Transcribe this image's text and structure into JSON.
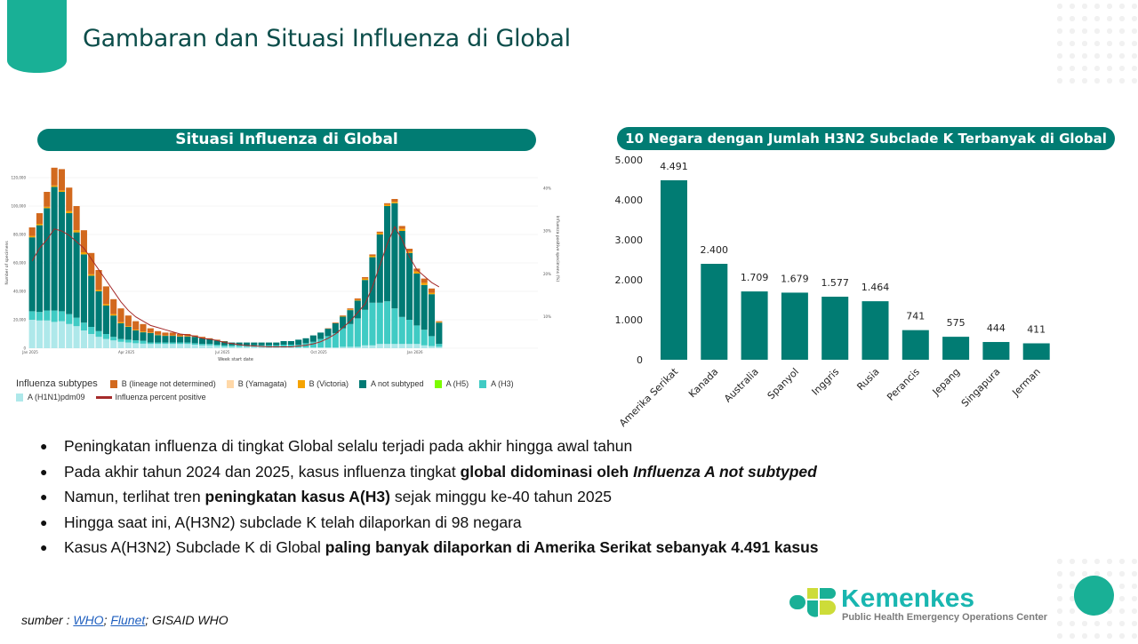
{
  "header": {
    "title": "Gambaran dan Situasi Influenza di Global"
  },
  "left_panel": {
    "title": "Situasi Influenza di Global"
  },
  "right_panel": {
    "title": "10 Negara dengan Jumlah H3N2 Subclade K Terbanyak di Global"
  },
  "colors": {
    "teal": "#017c73",
    "accent": "#19b096",
    "b_nd": "#d2691e",
    "b_yam": "#ffd8a8",
    "b_vic": "#f5a300",
    "a_not": "#007a74",
    "a_h5": "#7cfc00",
    "a_h3": "#40cbc4",
    "a_h1": "#aee8ea",
    "pct": "#a52a2a"
  },
  "chart_data": [
    {
      "type": "bar",
      "stacked": true,
      "title": "Situasi Influenza di Global",
      "xlabel": "Week start date",
      "ylabel": "Number of specimens",
      "y2label": "Influenza positive specimens (%)",
      "ylim": [
        0,
        130000
      ],
      "y_ticks": [
        "0",
        "20,000",
        "40,000",
        "60,000",
        "80,000",
        "100,000",
        "120,000"
      ],
      "y2_ticks": [
        "10%",
        "20%",
        "30%",
        "40%"
      ],
      "x_ticks": [
        "Jan 2025",
        "Apr 2025",
        "Jul 2025",
        "Oct 2025",
        "Jan 2026"
      ],
      "legend_title": "Influenza subtypes",
      "legend_position": "bottom",
      "units": "thousands of specimens",
      "series": [
        {
          "name": "A (H1N1)pdm09",
          "key": "a_h1",
          "values": [
            20,
            19.5,
            19.5,
            18.5,
            19,
            17,
            15.5,
            12.5,
            10,
            8,
            6.5,
            5.5,
            4.5,
            4,
            3.5,
            3.2,
            3,
            3,
            3,
            3,
            3,
            3,
            2.5,
            2,
            2,
            1.5,
            1,
            1,
            1,
            1,
            1,
            1,
            1,
            1,
            1,
            1,
            0.5,
            0.5,
            0.5,
            0.5,
            0.5,
            0.5,
            1,
            1,
            1,
            2,
            2,
            3,
            3,
            3,
            3,
            3,
            3,
            2,
            1.5,
            1
          ]
        },
        {
          "name": "A (H3)",
          "key": "a_h3",
          "values": [
            6,
            6,
            7,
            8,
            7,
            7,
            6,
            5.5,
            5,
            4,
            3.5,
            2.5,
            2,
            2,
            2,
            2,
            1,
            1,
            1,
            1,
            1,
            1,
            1,
            1,
            1,
            1,
            1,
            1,
            1,
            1,
            1,
            1,
            1,
            1,
            1.5,
            1.5,
            2,
            3,
            4,
            6,
            8,
            10,
            13,
            16,
            20,
            25,
            30,
            29,
            30,
            25,
            19,
            17,
            13,
            11,
            7,
            2
          ]
        },
        {
          "name": "A (H5)",
          "key": "a_h5",
          "values": [
            0,
            0,
            0,
            0,
            0,
            0,
            0,
            0,
            0,
            0,
            0,
            0,
            0,
            0,
            0,
            0,
            0,
            0,
            0,
            0,
            0,
            0,
            0,
            0,
            0,
            0,
            0,
            0,
            0,
            0,
            0,
            0,
            0,
            0,
            0,
            0,
            0,
            0,
            0,
            0,
            0,
            0,
            0,
            0,
            0,
            0,
            0,
            0,
            0,
            0,
            0,
            0,
            0,
            0,
            0,
            0
          ]
        },
        {
          "name": "A not subtyped",
          "key": "a_not",
          "values": [
            52,
            61,
            72,
            87,
            84,
            71,
            60,
            48,
            36,
            28,
            20,
            15,
            11,
            9,
            7,
            6,
            6.7,
            5.2,
            4.7,
            4.7,
            4.2,
            4.2,
            4.5,
            4,
            3.5,
            3,
            2.7,
            2,
            2,
            2,
            2,
            2,
            2,
            2,
            2.5,
            2.5,
            3.5,
            3.5,
            4.5,
            4.5,
            5.2,
            7,
            8.2,
            9.8,
            12.5,
            21,
            32,
            48,
            67,
            74,
            60.5,
            47,
            36.5,
            31.5,
            29.5,
            15
          ]
        },
        {
          "name": "B (Victoria)",
          "key": "b_vic",
          "values": [
            1,
            1,
            1,
            1,
            1,
            1.5,
            1.5,
            1.5,
            1,
            1,
            1,
            1,
            0.8,
            0.5,
            0.5,
            0.5,
            0.3,
            0.3,
            0.3,
            0.3,
            0.3,
            0.3,
            0,
            0,
            0,
            0,
            0,
            0,
            0,
            0,
            0,
            0,
            0,
            0,
            0,
            0,
            0,
            0,
            0,
            0,
            0,
            0,
            0.3,
            0.5,
            0.5,
            1,
            1,
            1,
            1,
            1,
            1.5,
            1,
            1.5,
            1.5,
            1,
            0.5
          ]
        },
        {
          "name": "B (Yamagata)",
          "key": "b_yam",
          "values": [
            0,
            0,
            0,
            0,
            0,
            0,
            0,
            0,
            0,
            0,
            0,
            0,
            0,
            0,
            0,
            0,
            0,
            0,
            0,
            0,
            0,
            0,
            0,
            0,
            0,
            0,
            0,
            0,
            0,
            0,
            0,
            0,
            0,
            0,
            0,
            0,
            0,
            0,
            0,
            0,
            0,
            0,
            0,
            0,
            0,
            0,
            0,
            0,
            0,
            0,
            0,
            0,
            0,
            0,
            0,
            0
          ]
        },
        {
          "name": "B (lineage not determined)",
          "key": "b_nd",
          "values": [
            6,
            7.5,
            10.5,
            12.5,
            15,
            16.5,
            17,
            15.5,
            15,
            14,
            12.5,
            10.5,
            9.7,
            7.5,
            6,
            5.3,
            3,
            2.5,
            2,
            2,
            1.5,
            1.5,
            1,
            1,
            0.5,
            0.5,
            0.3,
            0,
            0,
            0,
            0,
            0,
            0,
            0,
            0,
            0,
            0,
            0,
            0,
            0,
            0.3,
            0.5,
            0.5,
            0.7,
            1,
            1,
            1,
            1,
            1,
            2,
            2,
            2,
            2,
            3,
            3,
            0.5
          ]
        }
      ],
      "line": {
        "name": "Influenza percent positive",
        "unit": "%",
        "values": [
          23,
          26,
          28,
          30.5,
          30,
          29,
          27.5,
          26,
          23.5,
          21,
          18.5,
          16,
          13.5,
          11.5,
          10,
          9,
          8,
          7.5,
          7,
          6.5,
          6,
          5.8,
          5.5,
          5,
          4.8,
          4.5,
          4,
          3.8,
          3.5,
          3.3,
          3.2,
          3.1,
          3,
          3,
          3,
          3,
          3.2,
          3.4,
          3.7,
          4.2,
          5,
          6,
          7.5,
          9,
          11,
          13,
          17,
          22,
          27,
          31,
          28,
          24,
          21,
          19.5,
          18,
          17
        ]
      },
      "legend_order": [
        "B (lineage not determined)",
        "B (Yamagata)",
        "B (Victoria)",
        "A not subtyped",
        "A (H5)",
        "A (H3)",
        "A (H1N1)pdm09",
        "Influenza percent positive"
      ],
      "legend_keys": [
        "b_nd",
        "b_yam",
        "b_vic",
        "a_not",
        "a_h5",
        "a_h3",
        "a_h1",
        "pct"
      ]
    },
    {
      "type": "bar",
      "title": "10 Negara dengan Jumlah H3N2 Subclade K Terbanyak di Global",
      "categories": [
        "Amerika Serikat",
        "Kanada",
        "Australia",
        "Spanyol",
        "Inggris",
        "Rusia",
        "Perancis",
        "Jepang",
        "Singapura",
        "Jerman"
      ],
      "values": [
        4491,
        2400,
        1709,
        1679,
        1577,
        1464,
        741,
        575,
        444,
        411
      ],
      "value_labels": [
        "4.491",
        "2.400",
        "1.709",
        "1.679",
        "1.577",
        "1.464",
        "741",
        "575",
        "444",
        "411"
      ],
      "ylim": [
        0,
        5000
      ],
      "y_ticks": [
        "0",
        "1.000",
        "2.000",
        "3.000",
        "4.000",
        "5.000"
      ]
    }
  ],
  "bullets": [
    {
      "parts": [
        {
          "t": "Peningkatan influenza di tingkat Global selalu terjadi pada akhir hingga awal tahun",
          "s": ""
        }
      ]
    },
    {
      "parts": [
        {
          "t": "Pada akhir tahun 2024 dan 2025, kasus influenza tingkat ",
          "s": ""
        },
        {
          "t": "global didominasi oleh ",
          "s": "b"
        },
        {
          "t": "Influenza A not subtyped",
          "s": "bi"
        }
      ]
    },
    {
      "parts": [
        {
          "t": "Namun, terlihat tren ",
          "s": ""
        },
        {
          "t": "peningkatan kasus A(H3)",
          "s": "b"
        },
        {
          "t": " sejak minggu ke-40 tahun 2025",
          "s": ""
        }
      ]
    },
    {
      "parts": [
        {
          "t": "Hingga saat ini, A(H3N2) subclade K telah dilaporkan di 98 negara",
          "s": ""
        }
      ]
    },
    {
      "parts": [
        {
          "t": "Kasus A(H3N2) Subclade K di Global ",
          "s": ""
        },
        {
          "t": "paling banyak dilaporkan di Amerika Serikat sebanyak 4.491 kasus",
          "s": "b"
        }
      ]
    }
  ],
  "source": {
    "prefix": "sumber : ",
    "links": [
      "WHO",
      "Flunet"
    ],
    "sep": "; ",
    "suffix": "; GISAID WHO"
  },
  "logo": {
    "name": "Kemenkes",
    "subtitle": "Public Health Emergency Operations Center"
  }
}
